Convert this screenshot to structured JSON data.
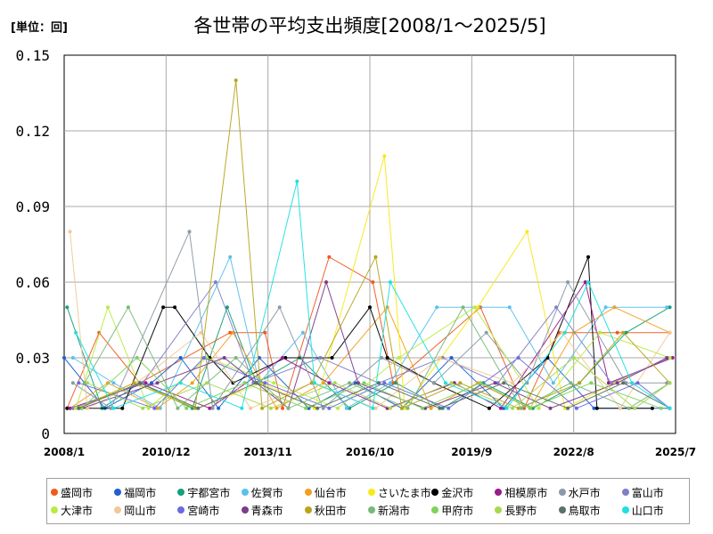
{
  "chart_data": {
    "type": "line",
    "title": "各世帯の平均支出頻度[2008/1～2025/5]",
    "unit_label": "[単位：回]",
    "xlabel": "",
    "ylabel": "",
    "ylim": [
      0,
      0.15
    ],
    "y_ticks": [
      "0",
      "0.03",
      "0.06",
      "0.09",
      "0.12",
      "0.15"
    ],
    "y_tick_values": [
      0,
      0.03,
      0.06,
      0.09,
      0.12,
      0.15
    ],
    "xlim": [
      "2008/1",
      "2025/7"
    ],
    "x_ticks": [
      "2008/1",
      "2010/12",
      "2013/11",
      "2016/10",
      "2019/9",
      "2022/8",
      "2025/7"
    ],
    "grid": true,
    "legend_position": "bottom",
    "series": [
      {
        "name": "盛岡市",
        "color": "#f05a1e",
        "points": [
          [
            "2008/2",
            0.01
          ],
          [
            "2009/1",
            0.04
          ],
          [
            "2010/3",
            0.02
          ],
          [
            "2012/10",
            0.04
          ],
          [
            "2013/10",
            0.04
          ],
          [
            "2014/4",
            0.01
          ],
          [
            "2015/8",
            0.07
          ],
          [
            "2016/11",
            0.06
          ],
          [
            "2017/6",
            0.02
          ],
          [
            "2019/12",
            0.05
          ],
          [
            "2021/3",
            0.01
          ],
          [
            "2022/3",
            0.04
          ],
          [
            "2023/11",
            0.04
          ],
          [
            "2025/5",
            0.04
          ]
        ]
      },
      {
        "name": "福岡市",
        "color": "#1f5fd0",
        "points": [
          [
            "2008/1",
            0.03
          ],
          [
            "2008/8",
            0.02
          ],
          [
            "2009/3",
            0.01
          ],
          [
            "2010/7",
            0.02
          ],
          [
            "2011/5",
            0.03
          ],
          [
            "2012/6",
            0.01
          ],
          [
            "2013/8",
            0.03
          ],
          [
            "2015/1",
            0.01
          ],
          [
            "2016/5",
            0.02
          ],
          [
            "2017/9",
            0.01
          ],
          [
            "2019/2",
            0.03
          ],
          [
            "2020/8",
            0.01
          ],
          [
            "2021/11",
            0.03
          ],
          [
            "2023/3",
            0.01
          ],
          [
            "2025/5",
            0.01
          ]
        ]
      },
      {
        "name": "宇都宮市",
        "color": "#14a07a",
        "points": [
          [
            "2008/2",
            0.05
          ],
          [
            "2009/2",
            0.01
          ],
          [
            "2010/3",
            0.02
          ],
          [
            "2011/9",
            0.01
          ],
          [
            "2012/9",
            0.05
          ],
          [
            "2013/7",
            0.02
          ],
          [
            "2014/10",
            0.03
          ],
          [
            "2016/3",
            0.01
          ],
          [
            "2017/7",
            0.02
          ],
          [
            "2018/11",
            0.01
          ],
          [
            "2020/1",
            0.02
          ],
          [
            "2021/6",
            0.01
          ],
          [
            "2022/10",
            0.02
          ],
          [
            "2024/2",
            0.04
          ],
          [
            "2025/5",
            0.05
          ]
        ]
      },
      {
        "name": "佐賀市",
        "color": "#5bc0eb",
        "points": [
          [
            "2008/4",
            0.03
          ],
          [
            "2009/6",
            0.02
          ],
          [
            "2010/10",
            0.01
          ],
          [
            "2012/10",
            0.07
          ],
          [
            "2013/8",
            0.02
          ],
          [
            "2014/11",
            0.04
          ],
          [
            "2016/2",
            0.01
          ],
          [
            "2017/5",
            0.02
          ],
          [
            "2018/9",
            0.05
          ],
          [
            "2020/10",
            0.05
          ],
          [
            "2022/1",
            0.02
          ],
          [
            "2023/7",
            0.05
          ],
          [
            "2025/4",
            0.05
          ]
        ]
      },
      {
        "name": "仙台市",
        "color": "#f0a020",
        "points": [
          [
            "2008/3",
            0.01
          ],
          [
            "2009/4",
            0.02
          ],
          [
            "2010/9",
            0.01
          ],
          [
            "2011/9",
            0.02
          ],
          [
            "2012/11",
            0.04
          ],
          [
            "2014/2",
            0.01
          ],
          [
            "2015/6",
            0.02
          ],
          [
            "2017/4",
            0.05
          ],
          [
            "2018/7",
            0.01
          ],
          [
            "2019/11",
            0.02
          ],
          [
            "2021/5",
            0.01
          ],
          [
            "2022/8",
            0.04
          ],
          [
            "2023/10",
            0.05
          ],
          [
            "2025/5",
            0.04
          ]
        ]
      },
      {
        "name": "さいたま市",
        "color": "#f8e81c",
        "points": [
          [
            "2008/5",
            0.01
          ],
          [
            "2010/1",
            0.02
          ],
          [
            "2011/11",
            0.01
          ],
          [
            "2013/9",
            0.02
          ],
          [
            "2015/3",
            0.01
          ],
          [
            "2017/3",
            0.11
          ],
          [
            "2017/10",
            0.01
          ],
          [
            "2019/11",
            0.05
          ],
          [
            "2021/4",
            0.08
          ],
          [
            "2022/5",
            0.01
          ],
          [
            "2023/10",
            0.02
          ],
          [
            "2025/5",
            0.03
          ]
        ]
      },
      {
        "name": "金沢市",
        "color": "#000000",
        "points": [
          [
            "2008/2",
            0.01
          ],
          [
            "2009/9",
            0.01
          ],
          [
            "2010/11",
            0.05
          ],
          [
            "2011/3",
            0.05
          ],
          [
            "2012/3",
            0.03
          ],
          [
            "2012/11",
            0.02
          ],
          [
            "2014/5",
            0.03
          ],
          [
            "2015/9",
            0.03
          ],
          [
            "2016/10",
            0.05
          ],
          [
            "2017/4",
            0.03
          ],
          [
            "2018/8",
            0.02
          ],
          [
            "2020/3",
            0.01
          ],
          [
            "2021/11",
            0.03
          ],
          [
            "2023/1",
            0.07
          ],
          [
            "2023/4",
            0.01
          ],
          [
            "2024/11",
            0.01
          ]
        ]
      },
      {
        "name": "相模原市",
        "color": "#9b1b8c",
        "points": [
          [
            "2008/3",
            0.01
          ],
          [
            "2010/5",
            0.02
          ],
          [
            "2012/3",
            0.01
          ],
          [
            "2014/4",
            0.03
          ],
          [
            "2015/8",
            0.02
          ],
          [
            "2017/4",
            0.01
          ],
          [
            "2019/3",
            0.02
          ],
          [
            "2020/7",
            0.01
          ],
          [
            "2022/12",
            0.06
          ],
          [
            "2023/8",
            0.02
          ],
          [
            "2025/6",
            0.03
          ]
        ]
      },
      {
        "name": "水戸市",
        "color": "#8a9aa8",
        "points": [
          [
            "2008/4",
            0.02
          ],
          [
            "2009/5",
            0.01
          ],
          [
            "2011/8",
            0.08
          ],
          [
            "2012/4",
            0.01
          ],
          [
            "2014/3",
            0.05
          ],
          [
            "2015/6",
            0.01
          ],
          [
            "2017/2",
            0.03
          ],
          [
            "2018/8",
            0.02
          ],
          [
            "2020/2",
            0.04
          ],
          [
            "2021/4",
            0.02
          ],
          [
            "2022/6",
            0.06
          ],
          [
            "2024/2",
            0.02
          ],
          [
            "2025/4",
            0.02
          ]
        ]
      },
      {
        "name": "富山市",
        "color": "#7f7fc8",
        "points": [
          [
            "2008/4",
            0.01
          ],
          [
            "2010/4",
            0.02
          ],
          [
            "2012/5",
            0.06
          ],
          [
            "2013/6",
            0.02
          ],
          [
            "2015/5",
            0.03
          ],
          [
            "2017/1",
            0.02
          ],
          [
            "2018/11",
            0.03
          ],
          [
            "2020/6",
            0.02
          ],
          [
            "2022/2",
            0.05
          ],
          [
            "2023/9",
            0.02
          ],
          [
            "2025/5",
            0.03
          ]
        ]
      },
      {
        "name": "大津市",
        "color": "#b8ec44",
        "points": [
          [
            "2008/5",
            0.01
          ],
          [
            "2009/4",
            0.05
          ],
          [
            "2010/6",
            0.01
          ],
          [
            "2012/2",
            0.03
          ],
          [
            "2014/1",
            0.02
          ],
          [
            "2015/11",
            0.01
          ],
          [
            "2017/8",
            0.03
          ],
          [
            "2019/10",
            0.05
          ],
          [
            "2021/8",
            0.01
          ],
          [
            "2023/5",
            0.04
          ],
          [
            "2025/5",
            0.03
          ]
        ]
      },
      {
        "name": "岡山市",
        "color": "#f2c89a",
        "points": [
          [
            "2008/3",
            0.08
          ],
          [
            "2008/9",
            0.01
          ],
          [
            "2010/2",
            0.02
          ],
          [
            "2011/12",
            0.04
          ],
          [
            "2013/5",
            0.01
          ],
          [
            "2015/2",
            0.02
          ],
          [
            "2016/12",
            0.01
          ],
          [
            "2018/10",
            0.03
          ],
          [
            "2020/11",
            0.02
          ],
          [
            "2022/4",
            0.04
          ],
          [
            "2023/12",
            0.01
          ],
          [
            "2025/5",
            0.04
          ]
        ]
      },
      {
        "name": "宮崎市",
        "color": "#6a6ae0",
        "points": [
          [
            "2008/6",
            0.02
          ],
          [
            "2010/8",
            0.01
          ],
          [
            "2012/1",
            0.03
          ],
          [
            "2013/10",
            0.02
          ],
          [
            "2015/8",
            0.01
          ],
          [
            "2017/3",
            0.02
          ],
          [
            "2019/1",
            0.01
          ],
          [
            "2021/1",
            0.03
          ],
          [
            "2022/9",
            0.01
          ],
          [
            "2024/6",
            0.02
          ],
          [
            "2025/5",
            0.01
          ]
        ]
      },
      {
        "name": "青森市",
        "color": "#7a3e8a",
        "points": [
          [
            "2008/7",
            0.01
          ],
          [
            "2010/9",
            0.02
          ],
          [
            "2012/8",
            0.03
          ],
          [
            "2014/6",
            0.01
          ],
          [
            "2015/7",
            0.06
          ],
          [
            "2016/6",
            0.02
          ],
          [
            "2018/5",
            0.01
          ],
          [
            "2020/5",
            0.02
          ],
          [
            "2021/12",
            0.01
          ],
          [
            "2023/11",
            0.02
          ],
          [
            "2025/4",
            0.03
          ]
        ]
      },
      {
        "name": "秋田市",
        "color": "#b8a41c",
        "points": [
          [
            "2008/6",
            0.01
          ],
          [
            "2010/1",
            0.02
          ],
          [
            "2011/10",
            0.01
          ],
          [
            "2012/12",
            0.14
          ],
          [
            "2013/9",
            0.01
          ],
          [
            "2015/2",
            0.02
          ],
          [
            "2016/12",
            0.07
          ],
          [
            "2017/9",
            0.01
          ],
          [
            "2019/5",
            0.02
          ],
          [
            "2021/1",
            0.01
          ],
          [
            "2022/10",
            0.02
          ],
          [
            "2024/1",
            0.04
          ],
          [
            "2025/5",
            0.02
          ]
        ]
      },
      {
        "name": "新潟市",
        "color": "#7ab87a",
        "points": [
          [
            "2008/8",
            0.02
          ],
          [
            "2009/11",
            0.05
          ],
          [
            "2011/4",
            0.01
          ],
          [
            "2012/12",
            0.03
          ],
          [
            "2014/6",
            0.01
          ],
          [
            "2016/3",
            0.02
          ],
          [
            "2017/11",
            0.01
          ],
          [
            "2019/6",
            0.05
          ],
          [
            "2021/2",
            0.01
          ],
          [
            "2022/7",
            0.02
          ],
          [
            "2024/3",
            0.01
          ],
          [
            "2025/5",
            0.02
          ]
        ]
      },
      {
        "name": "甲府市",
        "color": "#7ed45a",
        "points": [
          [
            "2008/7",
            0.01
          ],
          [
            "2010/2",
            0.03
          ],
          [
            "2011/7",
            0.01
          ],
          [
            "2013/3",
            0.02
          ],
          [
            "2014/12",
            0.01
          ],
          [
            "2016/8",
            0.02
          ],
          [
            "2018/4",
            0.01
          ],
          [
            "2019/12",
            0.02
          ],
          [
            "2021/5",
            0.01
          ],
          [
            "2023/2",
            0.02
          ],
          [
            "2025/2",
            0.01
          ]
        ]
      },
      {
        "name": "長野市",
        "color": "#a8d850",
        "points": [
          [
            "2008/9",
            0.02
          ],
          [
            "2010/4",
            0.01
          ],
          [
            "2012/2",
            0.02
          ],
          [
            "2013/12",
            0.01
          ],
          [
            "2015/10",
            0.02
          ],
          [
            "2017/5",
            0.01
          ],
          [
            "2019/2",
            0.02
          ],
          [
            "2020/11",
            0.01
          ],
          [
            "2022/8",
            0.03
          ],
          [
            "2024/5",
            0.01
          ],
          [
            "2025/5",
            0.02
          ]
        ]
      },
      {
        "name": "鳥取市",
        "color": "#5a7068",
        "points": [
          [
            "2008/6",
            0.01
          ],
          [
            "2010/3",
            0.02
          ],
          [
            "2011/11",
            0.01
          ],
          [
            "2013/7",
            0.02
          ],
          [
            "2015/4",
            0.01
          ],
          [
            "2017/1",
            0.02
          ],
          [
            "2018/10",
            0.01
          ],
          [
            "2020/8",
            0.02
          ],
          [
            "2022/6",
            0.01
          ],
          [
            "2024/1",
            0.02
          ],
          [
            "2025/5",
            0.01
          ]
        ]
      },
      {
        "name": "山口市",
        "color": "#1ee0e0",
        "points": [
          [
            "2008/5",
            0.04
          ],
          [
            "2009/6",
            0.01
          ],
          [
            "2011/5",
            0.02
          ],
          [
            "2013/2",
            0.01
          ],
          [
            "2014/9",
            0.1
          ],
          [
            "2015/3",
            0.02
          ],
          [
            "2016/11",
            0.01
          ],
          [
            "2017/5",
            0.06
          ],
          [
            "2018/12",
            0.02
          ],
          [
            "2020/9",
            0.01
          ],
          [
            "2022/5",
            0.04
          ],
          [
            "2023/1",
            0.06
          ],
          [
            "2024/4",
            0.02
          ],
          [
            "2025/5",
            0.01
          ]
        ]
      }
    ]
  }
}
